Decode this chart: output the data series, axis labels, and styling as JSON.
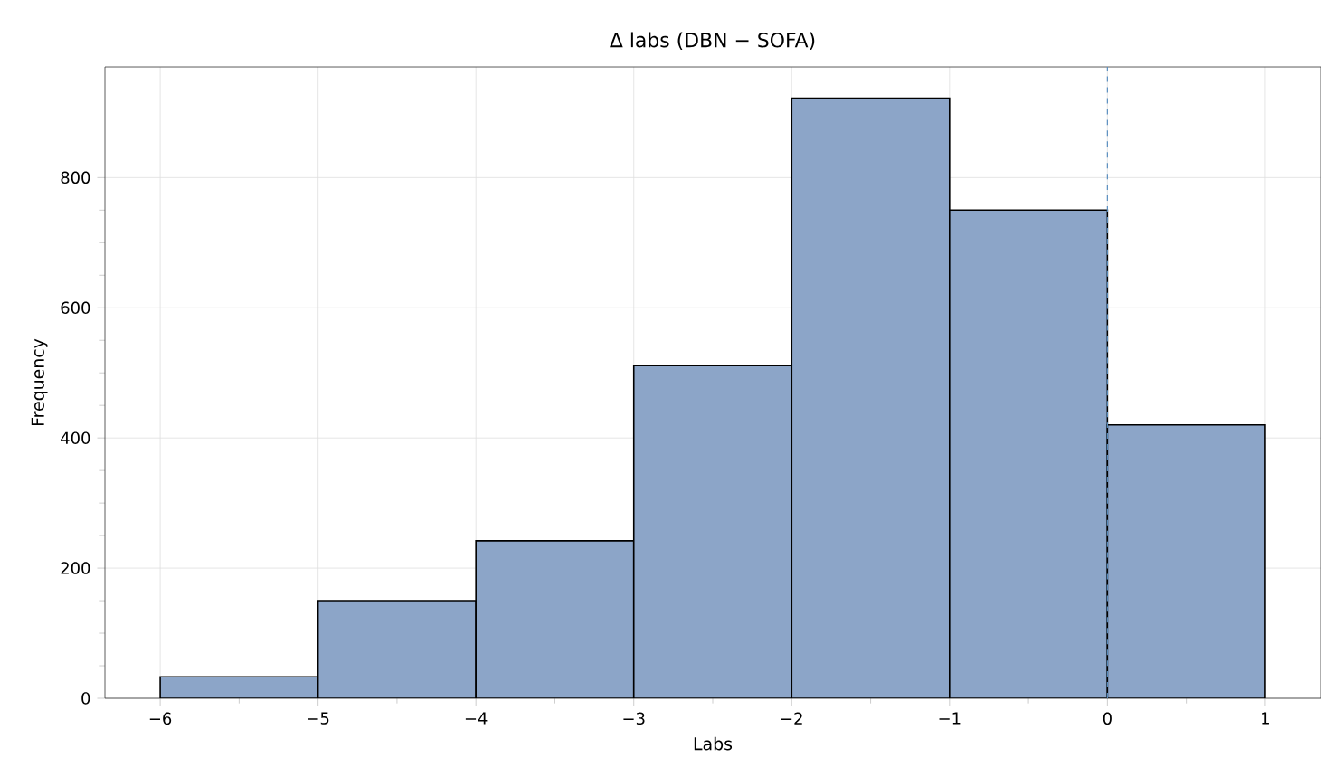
{
  "chart_data": {
    "type": "histogram",
    "title": "Δ labs (DBN − SOFA)",
    "xlabel": "Labs",
    "ylabel": "Frequency",
    "bins": [
      -6,
      -5,
      -4,
      -3,
      -2,
      -1,
      0,
      1
    ],
    "values": [
      33,
      150,
      242,
      511,
      922,
      750,
      420
    ],
    "color": "#8ca5c8",
    "xlim": [
      -6.35,
      1.35
    ],
    "ylim": [
      0,
      970
    ],
    "xticks": [
      {
        "value": -6,
        "label": "−6"
      },
      {
        "value": -5,
        "label": "−5"
      },
      {
        "value": -4,
        "label": "−4"
      },
      {
        "value": -3,
        "label": "−3"
      },
      {
        "value": -2,
        "label": "−2"
      },
      {
        "value": -1,
        "label": "−1"
      },
      0,
      1
    ],
    "yticks": [
      0,
      200,
      400,
      600,
      800
    ],
    "grid": true,
    "ref_lines": [
      {
        "axis": "x",
        "value": 0,
        "color": "#5b8fc0",
        "line_style": "dashed"
      }
    ]
  }
}
